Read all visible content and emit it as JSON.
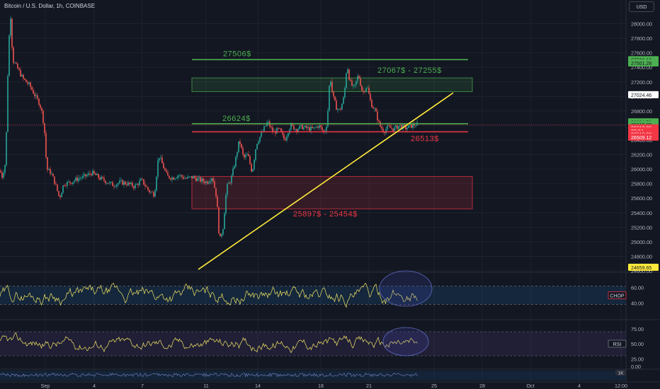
{
  "header": {
    "title": "Bitcoin / U.S. Dollar, 1h, COINBASE",
    "currency_button": "USD"
  },
  "colors": {
    "background": "#131722",
    "up": "#26a69a",
    "down": "#ef5350",
    "green_line": "#4caf50",
    "red_line": "#f23645",
    "trendline": "#ffeb3b",
    "indicator_line": "#f5e663"
  },
  "chart_data": [
    {
      "type": "candlestick",
      "symbol": "Bitcoin / U.S. Dollar",
      "interval": "1h",
      "exchange": "COINBASE",
      "ylim": [
        24600,
        28200
      ],
      "y_ticks": [
        "28000.00",
        "27800.00",
        "27600.00",
        "27400.00",
        "27200.00",
        "27000.00",
        "26800.00",
        "26600.00",
        "26400.00",
        "26200.00",
        "26000.00",
        "25800.00",
        "25600.00",
        "25400.00",
        "25200.00",
        "25000.00",
        "24800.00",
        "24600.00"
      ],
      "x_ticks": [
        "Sep",
        "4",
        "7",
        "11",
        "14",
        "18",
        "21",
        "25",
        "28",
        "Oct",
        "4",
        "12:00"
      ],
      "price_path": [
        [
          0,
          25980
        ],
        [
          3,
          25900
        ],
        [
          8,
          26100
        ],
        [
          12,
          27700
        ],
        [
          15,
          28100
        ],
        [
          18,
          27500
        ],
        [
          24,
          27400
        ],
        [
          32,
          27250
        ],
        [
          42,
          27150
        ],
        [
          50,
          27000
        ],
        [
          56,
          26900
        ],
        [
          60,
          26750
        ],
        [
          63,
          26500
        ],
        [
          66,
          26000
        ],
        [
          72,
          25950
        ],
        [
          78,
          25800
        ],
        [
          84,
          25600
        ],
        [
          90,
          25800
        ],
        [
          100,
          25820
        ],
        [
          110,
          25870
        ],
        [
          120,
          25900
        ],
        [
          130,
          25950
        ],
        [
          140,
          25880
        ],
        [
          150,
          25830
        ],
        [
          160,
          25780
        ],
        [
          170,
          25820
        ],
        [
          180,
          25800
        ],
        [
          190,
          25760
        ],
        [
          200,
          25850
        ],
        [
          210,
          25700
        ],
        [
          218,
          25650
        ],
        [
          224,
          26200
        ],
        [
          230,
          26050
        ],
        [
          236,
          25900
        ],
        [
          244,
          25880
        ],
        [
          252,
          25920
        ],
        [
          262,
          25870
        ],
        [
          272,
          25890
        ],
        [
          282,
          25850
        ],
        [
          292,
          25820
        ],
        [
          300,
          25900
        ],
        [
          306,
          25600
        ],
        [
          310,
          25000
        ],
        [
          315,
          25200
        ],
        [
          320,
          25750
        ],
        [
          326,
          25850
        ],
        [
          332,
          26100
        ],
        [
          338,
          26400
        ],
        [
          344,
          26150
        ],
        [
          350,
          26200
        ],
        [
          356,
          25950
        ],
        [
          362,
          26350
        ],
        [
          370,
          26500
        ],
        [
          378,
          26650
        ],
        [
          386,
          26500
        ],
        [
          394,
          26550
        ],
        [
          402,
          26400
        ],
        [
          410,
          26600
        ],
        [
          418,
          26550
        ],
        [
          426,
          26580
        ],
        [
          434,
          26560
        ],
        [
          442,
          26550
        ],
        [
          450,
          26600
        ],
        [
          458,
          26500
        ],
        [
          462,
          26650
        ],
        [
          466,
          27300
        ],
        [
          470,
          27000
        ],
        [
          475,
          26850
        ],
        [
          480,
          26800
        ],
        [
          486,
          27000
        ],
        [
          490,
          27450
        ],
        [
          494,
          27200
        ],
        [
          500,
          27100
        ],
        [
          506,
          27300
        ],
        [
          512,
          27050
        ],
        [
          518,
          27150
        ],
        [
          524,
          26900
        ],
        [
          530,
          26800
        ],
        [
          536,
          26600
        ],
        [
          542,
          26520
        ],
        [
          548,
          26580
        ],
        [
          556,
          26550
        ],
        [
          564,
          26600
        ],
        [
          572,
          26560
        ],
        [
          580,
          26590
        ],
        [
          588,
          26620
        ],
        [
          590,
          26612
        ]
      ]
    },
    {
      "type": "annotations",
      "levels": [
        {
          "label": "27506$",
          "price": 27506
        },
        {
          "label": "26624$",
          "price": 26624
        },
        {
          "label": "26513$",
          "price": 26513
        }
      ],
      "zones": [
        {
          "label": "27067$ - 27255$",
          "low": 27067,
          "high": 27255
        },
        {
          "label": "25897$ - 25454$",
          "low": 25454,
          "high": 25897
        }
      ],
      "trendline": {
        "from_price": 24620,
        "to_price": 27050
      },
      "price_tags": [
        {
          "text": "27506.10",
          "price": 27506,
          "kind": "green"
        },
        {
          "text": "27501.28",
          "price": 27460,
          "kind": "green"
        },
        {
          "text": "27024.46",
          "price": 27024,
          "kind": "neutral"
        },
        {
          "text": "26624.71",
          "price": 26650,
          "kind": "green"
        },
        {
          "text": "26619.89",
          "price": 26612,
          "kind": "green"
        },
        {
          "text": "26610.00",
          "price": 26568,
          "kind": "red"
        },
        {
          "text": "28:04",
          "price": 26528,
          "kind": "red"
        },
        {
          "text": "26513.93",
          "price": 26483,
          "kind": "red"
        },
        {
          "text": "26509.12",
          "price": 26440,
          "kind": "red"
        },
        {
          "text": "24659.65",
          "price": 24650,
          "kind": "yellow"
        }
      ]
    },
    {
      "type": "line",
      "name": "CHOP",
      "y_ticks": [
        "60.00",
        "40.00"
      ],
      "ylim": [
        20,
        80
      ],
      "band": [
        38.2,
        61.8
      ],
      "last_value_tag": "CHOP"
    },
    {
      "type": "line",
      "name": "RSI",
      "y_ticks": [
        "75.00",
        "50.00",
        "25.00"
      ],
      "ylim": [
        10,
        90
      ],
      "band": [
        30,
        70
      ],
      "last_value_tag": "RSI"
    },
    {
      "type": "line",
      "name": "",
      "y_ticks": [
        "0.00"
      ],
      "last_value_tag": "1K"
    }
  ]
}
